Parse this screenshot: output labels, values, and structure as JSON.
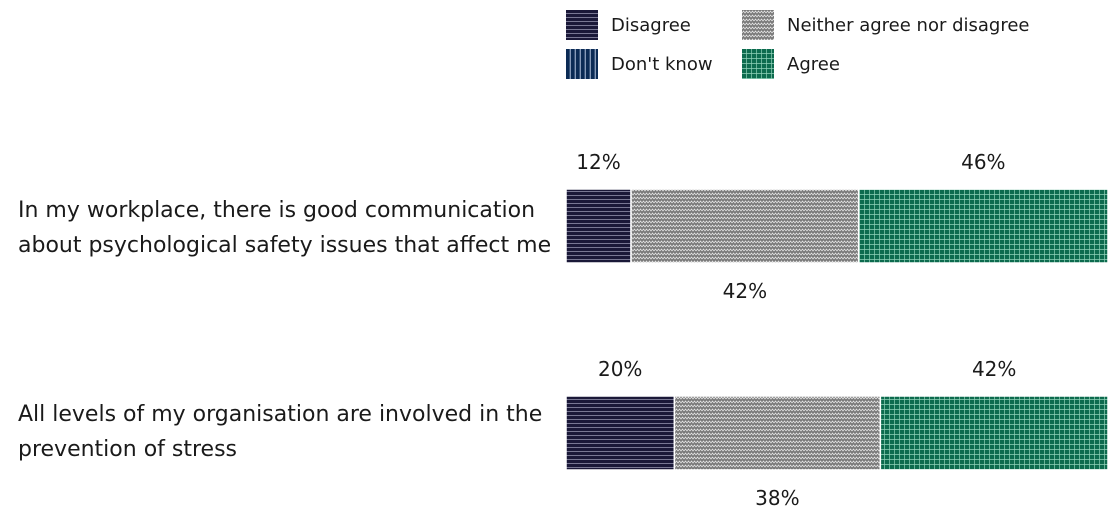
{
  "chart_data": {
    "type": "bar",
    "orientation": "horizontal",
    "stacked": true,
    "title": "",
    "xlabel": "",
    "ylabel": "",
    "categories": [
      "In my workplace, there is good communication about psychological safety issues that affect me",
      "All levels of my organisation are involved in the prevention of stress"
    ],
    "series": [
      {
        "name": "Disagree",
        "values": [
          12,
          20
        ],
        "color": "#1a1838",
        "pattern": "horizontal-lines"
      },
      {
        "name": "Neither agree nor disagree",
        "values": [
          42,
          38
        ],
        "color": "#7a7a7a",
        "pattern": "zigzag"
      },
      {
        "name": "Agree",
        "values": [
          46,
          42
        ],
        "color": "#0d6b4e",
        "pattern": "grid"
      }
    ],
    "data_labels": [
      [
        "12%",
        "42%",
        "46%"
      ],
      [
        "20%",
        "38%",
        "42%"
      ]
    ],
    "legend": {
      "position": "top-right",
      "items": [
        {
          "name": "Disagree",
          "color": "#1a1838",
          "pattern": "horizontal-lines"
        },
        {
          "name": "Neither agree nor disagree",
          "color": "#7a7a7a",
          "pattern": "zigzag"
        },
        {
          "name": "Don't know",
          "color": "#0b2b55",
          "pattern": "vertical-lines"
        },
        {
          "name": "Agree",
          "color": "#0d6b4e",
          "pattern": "grid"
        }
      ]
    },
    "xlim": [
      0,
      100
    ],
    "grid": false
  }
}
